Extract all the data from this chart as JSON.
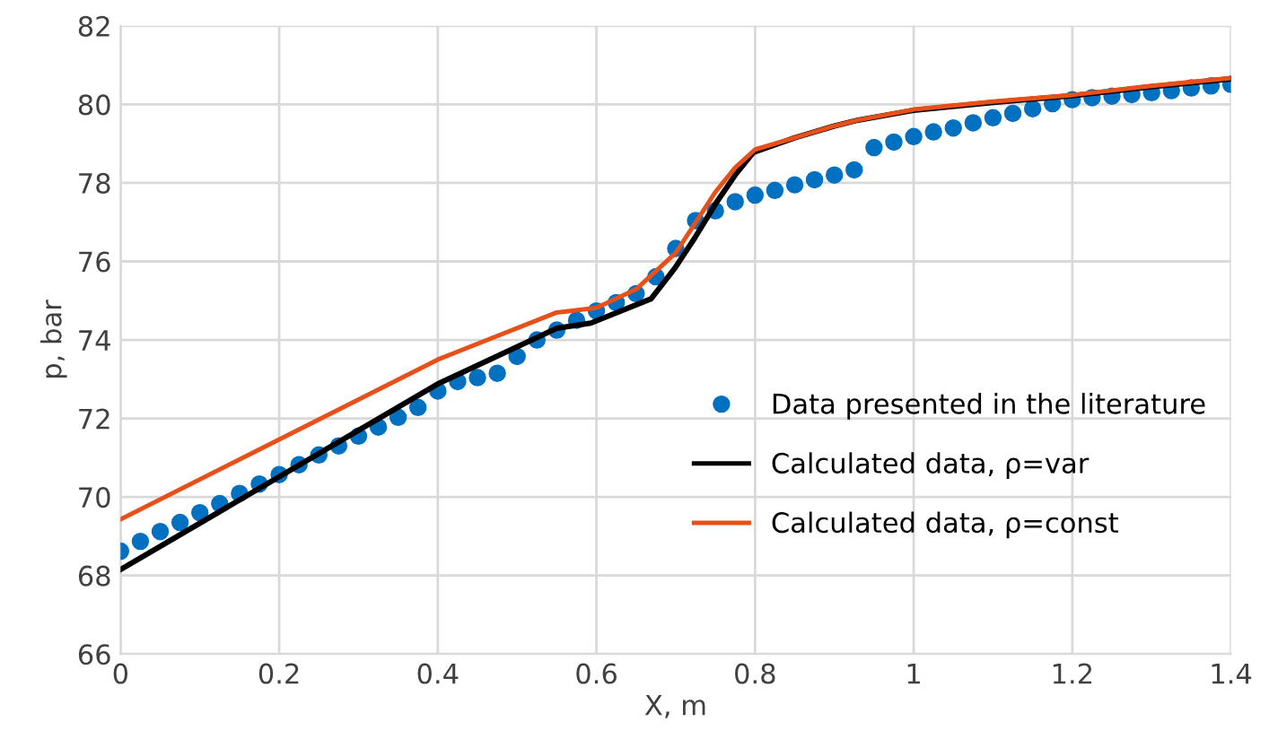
{
  "chart_data": {
    "type": "line",
    "xlabel": "X, m",
    "ylabel": "p, bar",
    "xlim": [
      0,
      1.4
    ],
    "ylim": [
      66,
      82
    ],
    "xticks": [
      0,
      0.2,
      0.4,
      0.6,
      0.8,
      1,
      1.2,
      1.4
    ],
    "yticks": [
      66,
      68,
      70,
      72,
      74,
      76,
      78,
      80,
      82
    ],
    "grid": true,
    "legend": "right",
    "series": [
      {
        "name": "Data presented in the literature",
        "type": "scatter",
        "marker": "circle",
        "color": "#0070c0",
        "x": [
          0,
          0.025,
          0.05,
          0.075,
          0.1,
          0.125,
          0.15,
          0.175,
          0.2,
          0.225,
          0.25,
          0.275,
          0.3,
          0.325,
          0.35,
          0.375,
          0.4,
          0.425,
          0.45,
          0.475,
          0.5,
          0.525,
          0.55,
          0.575,
          0.6,
          0.625,
          0.65,
          0.675,
          0.7,
          0.725,
          0.75,
          0.775,
          0.8,
          0.825,
          0.85,
          0.875,
          0.9,
          0.925,
          0.95,
          0.975,
          1,
          1.025,
          1.05,
          1.075,
          1.1,
          1.125,
          1.15,
          1.175,
          1.2,
          1.225,
          1.25,
          1.275,
          1.3,
          1.325,
          1.35,
          1.375,
          1.4
        ],
        "values": [
          68.62,
          68.87,
          69.12,
          69.35,
          69.6,
          69.83,
          70.09,
          70.33,
          70.57,
          70.82,
          71.07,
          71.3,
          71.55,
          71.78,
          72.03,
          72.28,
          72.7,
          72.94,
          73.04,
          73.15,
          73.58,
          74.0,
          74.25,
          74.5,
          74.74,
          74.95,
          75.18,
          75.61,
          76.33,
          77.04,
          77.29,
          77.52,
          77.69,
          77.81,
          77.95,
          78.08,
          78.2,
          78.33,
          78.9,
          79.04,
          79.18,
          79.3,
          79.4,
          79.53,
          79.66,
          79.77,
          79.89,
          80.02,
          80.12,
          80.17,
          80.21,
          80.25,
          80.3,
          80.35,
          80.42,
          80.47,
          80.51
        ]
      },
      {
        "name": "Calculated data, ρ=var",
        "marker": "none",
        "line_style": "solid",
        "color": "#000000",
        "x": [
          0,
          0.4,
          0.55,
          0.593,
          0.669,
          0.699,
          0.724,
          0.75,
          0.776,
          0.798,
          0.85,
          0.9,
          0.93,
          1.0,
          1.1,
          1.2,
          1.3,
          1.4
        ],
        "values": [
          68.15,
          72.88,
          74.3,
          74.43,
          75.05,
          75.83,
          76.6,
          77.46,
          78.23,
          78.78,
          79.15,
          79.45,
          79.6,
          79.85,
          80.05,
          80.22,
          80.45,
          80.65
        ]
      },
      {
        "name": "Calculated data, ρ=const",
        "marker": "none",
        "line_style": "solid",
        "color": "#e8501a",
        "x": [
          0,
          0.4,
          0.55,
          0.6,
          0.65,
          0.7,
          0.725,
          0.75,
          0.775,
          0.8,
          0.85,
          0.9,
          0.93,
          1.0,
          1.1,
          1.2,
          1.3,
          1.4
        ],
        "values": [
          69.43,
          73.5,
          74.7,
          74.82,
          75.29,
          76.22,
          76.99,
          77.77,
          78.39,
          78.85,
          79.15,
          79.45,
          79.6,
          79.87,
          80.07,
          80.24,
          80.47,
          80.67
        ]
      }
    ]
  }
}
